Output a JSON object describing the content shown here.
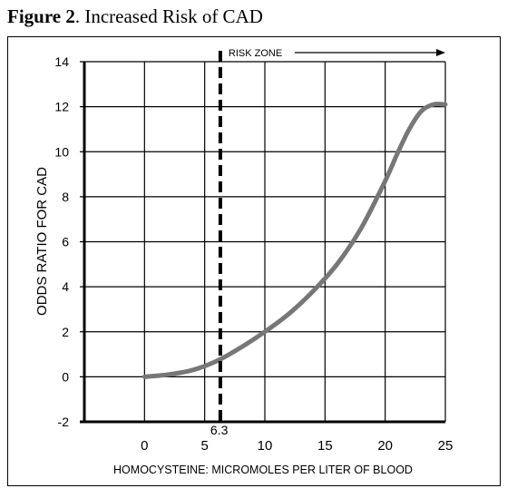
{
  "figure": {
    "label": "Figure 2",
    "title": ". Increased Risk of CAD"
  },
  "chart_data": {
    "type": "line",
    "title": "",
    "xlabel": "HOMOCYSTEINE: MICROMOLES PER LITER OF BLOOD",
    "ylabel": "ODDS RATIO FOR CAD",
    "xlim": [
      -5,
      25
    ],
    "ylim": [
      -2,
      14
    ],
    "x_ticks": [
      0,
      5,
      10,
      15,
      20,
      25
    ],
    "y_ticks": [
      -2,
      0,
      2,
      4,
      6,
      8,
      10,
      12,
      14
    ],
    "grid": true,
    "series": [
      {
        "color": "#777777",
        "x": [
          0,
          2,
          4,
          6,
          8,
          10,
          12,
          14,
          16,
          18,
          20,
          21,
          22,
          23,
          24,
          25
        ],
        "y": [
          0,
          0.1,
          0.3,
          0.7,
          1.3,
          2.0,
          2.8,
          3.8,
          5.0,
          6.6,
          8.7,
          9.9,
          11.0,
          11.8,
          12.1,
          12.1
        ]
      }
    ],
    "threshold": {
      "x": 6.3,
      "label": "6.3",
      "zone_label": "RISK ZONE"
    }
  }
}
